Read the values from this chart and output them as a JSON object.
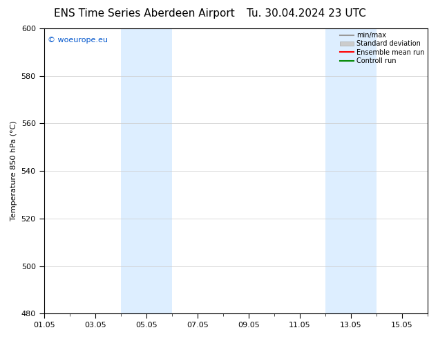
{
  "title": "ENS Time Series Aberdeen Airport",
  "title2": "Tu. 30.04.2024 23 UTC",
  "ylabel": "Temperature 850 hPa (°C)",
  "ylim": [
    480,
    600
  ],
  "yticks": [
    480,
    500,
    520,
    540,
    560,
    580,
    600
  ],
  "xtick_labels": [
    "01.05",
    "03.05",
    "05.05",
    "07.05",
    "09.05",
    "11.05",
    "13.05",
    "15.05"
  ],
  "xtick_positions": [
    0,
    2,
    4,
    6,
    8,
    10,
    12,
    14
  ],
  "xlim": [
    0,
    15
  ],
  "background_color": "#ffffff",
  "plot_bg_color": "#ffffff",
  "shade_bands": [
    {
      "x_start": 3.0,
      "x_end": 4.0,
      "color": "#ddeeff"
    },
    {
      "x_start": 4.0,
      "x_end": 5.0,
      "color": "#ddeeff"
    },
    {
      "x_start": 11.0,
      "x_end": 12.0,
      "color": "#ddeeff"
    },
    {
      "x_start": 12.0,
      "x_end": 13.0,
      "color": "#ddeeff"
    }
  ],
  "legend_items": [
    {
      "label": "min/max",
      "color": "#999999",
      "lw": 1.5,
      "style": "-",
      "type": "line"
    },
    {
      "label": "Standard deviation",
      "color": "#cccccc",
      "lw": 6,
      "style": "-",
      "type": "patch"
    },
    {
      "label": "Ensemble mean run",
      "color": "#ff0000",
      "lw": 1.5,
      "style": "-",
      "type": "line"
    },
    {
      "label": "Controll run",
      "color": "#008800",
      "lw": 1.5,
      "style": "-",
      "type": "line"
    }
  ],
  "watermark": "© woeurope.eu",
  "watermark_color": "#0055cc",
  "grid_color": "#cccccc",
  "axis_color": "#000000",
  "title_fontsize": 11,
  "label_fontsize": 8,
  "tick_fontsize": 8
}
